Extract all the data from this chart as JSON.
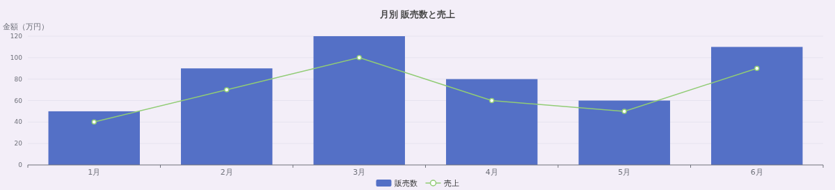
{
  "chart_data": {
    "type": "bar",
    "title": "月別 販売数と売上",
    "ylabel": "金額（万円）",
    "categories": [
      "1月",
      "2月",
      "3月",
      "4月",
      "5月",
      "6月"
    ],
    "series": [
      {
        "name": "販売数",
        "color": "#5470c6",
        "values": [
          50,
          90,
          120,
          80,
          60,
          110
        ]
      },
      {
        "name": "売上",
        "type": "line",
        "color": "#91cc75",
        "marker": "circle",
        "values": [
          40,
          70,
          100,
          60,
          50,
          90
        ]
      }
    ],
    "ylim": [
      0,
      120
    ],
    "yticks": [
      0,
      20,
      40,
      60,
      80,
      100,
      120
    ],
    "grid": "y",
    "legend": "bottom"
  }
}
